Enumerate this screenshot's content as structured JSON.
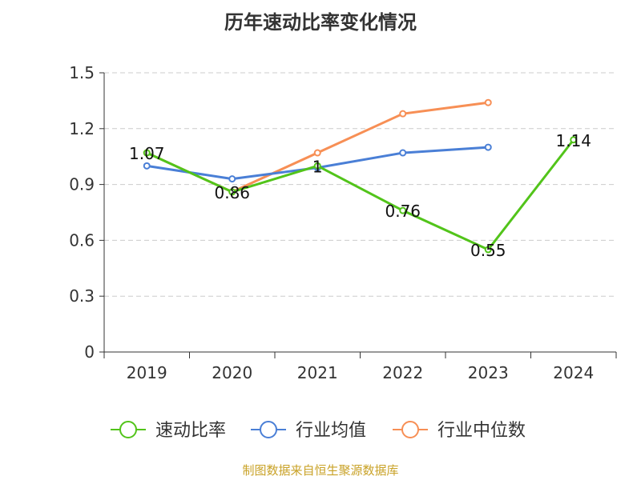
{
  "chart_data": {
    "type": "line",
    "title": "历年速动比率变化情况",
    "categories": [
      "2019",
      "2020",
      "2021",
      "2022",
      "2023",
      "2024"
    ],
    "ylim": [
      0,
      1.5
    ],
    "yticks": [
      "0",
      "0.3",
      "0.6",
      "0.9",
      "1.2",
      "1.5"
    ],
    "grid": true,
    "legend_position": "bottom",
    "series": [
      {
        "name": "速动比率",
        "color": "#52c41a",
        "values": [
          1.07,
          0.86,
          1,
          0.76,
          0.55,
          1.14
        ],
        "labels": [
          "1.07",
          "0.86",
          "1",
          "0.76",
          "0.55",
          "1.14"
        ]
      },
      {
        "name": "行业均值",
        "color": "#4a7fd6",
        "values": [
          1.0,
          0.93,
          0.99,
          1.07,
          1.1,
          null
        ]
      },
      {
        "name": "行业中位数",
        "color": "#f78f55",
        "values": [
          1.07,
          0.86,
          1.07,
          1.28,
          1.34,
          null
        ]
      }
    ]
  },
  "source_note": "制图数据来自恒生聚源数据库"
}
